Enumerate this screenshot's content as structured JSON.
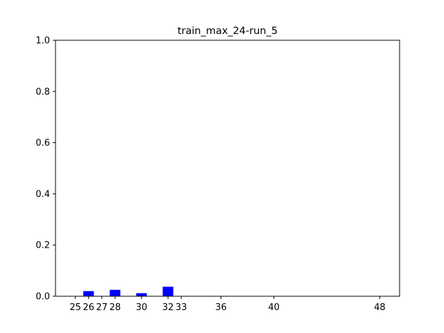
{
  "chart_data": {
    "type": "bar",
    "title": "train_max_24-run_5",
    "xlabel": "",
    "ylabel": "",
    "x": [
      25,
      26,
      27,
      28,
      30,
      32,
      33,
      36,
      40,
      48
    ],
    "x_tick_labels": [
      "25",
      "26",
      "27",
      "28",
      "30",
      "32",
      "33",
      "36",
      "40",
      "48"
    ],
    "values": [
      0.0,
      0.02,
      0.0,
      0.025,
      0.012,
      0.037,
      0.0,
      0.0,
      0.0,
      0.0
    ],
    "bar_width": 0.8,
    "xlim": [
      23.5,
      49.5
    ],
    "ylim": [
      0,
      1.0
    ],
    "y_ticks": [
      0.0,
      0.2,
      0.4,
      0.6,
      0.8,
      1.0
    ],
    "y_tick_labels": [
      "0.0",
      "0.2",
      "0.4",
      "0.6",
      "0.8",
      "1.0"
    ],
    "bar_color": "#0000ff",
    "grid": false,
    "legend": "none"
  }
}
